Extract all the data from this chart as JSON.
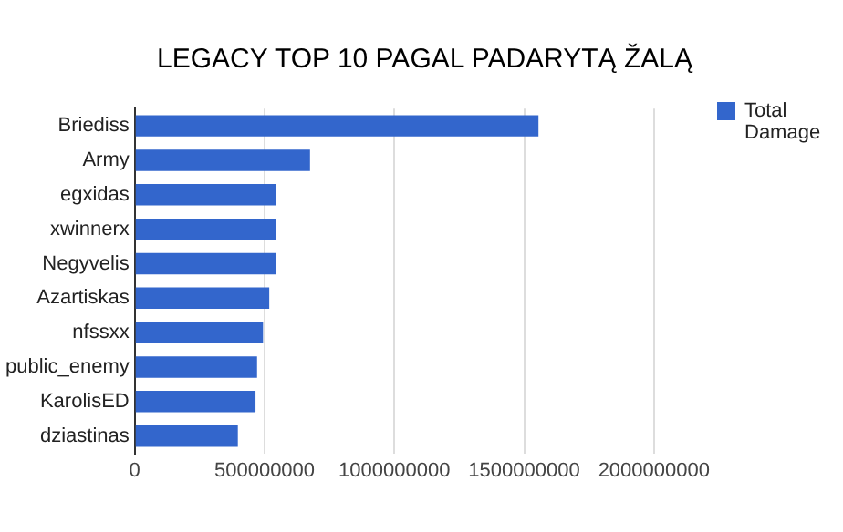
{
  "chart_data": {
    "type": "bar",
    "orientation": "horizontal",
    "title": "LEGACY TOP 10 PAGAL PADARYTĄ ŽALĄ",
    "categories": [
      "Briediss",
      "Army",
      "egxidas",
      "xwinnerx",
      "Negyvelis",
      "Azartiskas",
      "nfssxx",
      "public_enemy",
      "KarolisED",
      "dziastinas"
    ],
    "series": [
      {
        "name": "Total Damage",
        "color": "#3366cc",
        "values": [
          1555000000,
          675000000,
          545000000,
          545000000,
          545000000,
          518000000,
          494000000,
          471000000,
          465000000,
          397000000
        ]
      }
    ],
    "xlim": [
      0,
      2000000000
    ],
    "xticks": [
      0,
      500000000,
      1000000000,
      1500000000,
      2000000000
    ],
    "grid": "x",
    "legend": "right"
  }
}
